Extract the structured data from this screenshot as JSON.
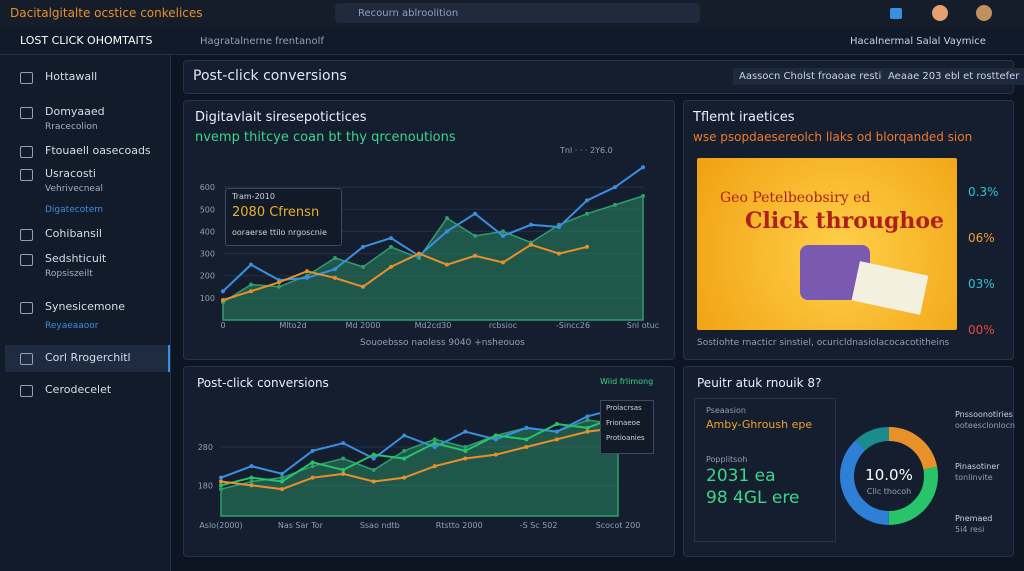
{
  "topbar": {
    "brand": "Dacitalgitalte ocstice conkelices",
    "search": "Recourn ablroolition"
  },
  "nav": {
    "title": "LOST CLICK OHOMTAITS",
    "breadcrumb": "Hagratalnerne frentanolf",
    "right": "Hacalnermal Salal Vaymice"
  },
  "sidebar": {
    "items": [
      {
        "label": "Hottawall"
      },
      {
        "label": "Domyaaed",
        "sub": "Rracecolion"
      },
      {
        "label": "Ftouaell oasecoads"
      },
      {
        "label": "Usracosti",
        "sub": "Vehrivecneal",
        "sub2": "Digatecotem"
      },
      {
        "label": "Cohibansil"
      },
      {
        "label": "Sedshticuit",
        "sub": "Ropsiszeilt"
      },
      {
        "label": "Synesicemone",
        "sub2": "Reyaeaaoor"
      },
      {
        "label": "Corl Rrogerchitl"
      },
      {
        "label": "Cerodecelet"
      }
    ]
  },
  "header": {
    "title": "Post-click conversions",
    "buttons": [
      "Aassocn Cholst froaoae resticen",
      "Aeaae 203 ebl et rosttefer"
    ]
  },
  "panel1": {
    "title": "Digitavlait siresepotictices",
    "subtitle": "nvemp thitcye coan bt thy qrcenoutions",
    "legend": "Tnl · · ·  2Y6.0",
    "tooltip": [
      "Tram-2010",
      "2080 Cfrensn",
      "ooraerse ttilo nrgoscnie"
    ],
    "footer": "Souoebsso naoless 9040 +nsheouos",
    "chart": {
      "type": "line",
      "ylim": [
        0,
        700
      ],
      "yticks": [
        100,
        200,
        300,
        400,
        500,
        600
      ],
      "xlabels": [
        "0",
        "Mlto2d",
        "Md 2000",
        "Md2cd30",
        "rcbsioc",
        "-Sincc26",
        "Snl otuc"
      ],
      "series": [
        {
          "kind": "area",
          "color": "#2f9e6e",
          "values": [
            80,
            160,
            150,
            200,
            280,
            240,
            330,
            280,
            460,
            380,
            400,
            350,
            430,
            480,
            520,
            560
          ]
        },
        {
          "kind": "line",
          "color": "#3b8fe0",
          "values": [
            130,
            250,
            180,
            190,
            230,
            330,
            370,
            290,
            400,
            480,
            380,
            430,
            420,
            540,
            600,
            690
          ]
        },
        {
          "kind": "line",
          "color": "#e8902a",
          "values": [
            90,
            130,
            170,
            220,
            190,
            150,
            240,
            300,
            250,
            290,
            260,
            340,
            300,
            330,
            null,
            null
          ]
        }
      ]
    }
  },
  "panel2": {
    "title": "Tflemt iraetices",
    "subtitle": "wse psopdaesereolch llaks od blorqanded sion",
    "image_text": [
      "Geo Petelbeobsiry ed",
      "Click throughoe"
    ],
    "stats": [
      {
        "label": "0.3%",
        "color": "#2ec4d6"
      },
      {
        "label": "06%",
        "color": "#f0a030"
      },
      {
        "label": "03%",
        "color": "#2ec4d6"
      },
      {
        "label": "00%",
        "color": "#e84a3a"
      }
    ],
    "footer": "Sostiohte rnacticr sinstiel, ocuricldnasiolacocacotitheins"
  },
  "panel3": {
    "title": "Post-click conversions",
    "control": "Wiid frlimong",
    "legend": [
      "Prolacrsas",
      "Frionaeoe",
      "Protioanies"
    ],
    "chart": {
      "type": "line",
      "ylim": [
        100,
        400
      ],
      "yticks": [
        180,
        280
      ],
      "xlabels": [
        "Aslo(2000)",
        "Nas Sar Tor",
        "Ssao ndtb",
        "Rtstto 2000",
        "-S Sc 502",
        "Scocot 200"
      ],
      "series": [
        {
          "kind": "area",
          "color": "#2f9e6e",
          "values": [
            170,
            190,
            200,
            230,
            250,
            220,
            270,
            300,
            280,
            310,
            330,
            320,
            350,
            340
          ]
        },
        {
          "kind": "line",
          "color": "#3b8fe0",
          "values": [
            200,
            230,
            210,
            270,
            290,
            250,
            310,
            280,
            320,
            300,
            330,
            320,
            360,
            380
          ]
        },
        {
          "kind": "line",
          "color": "#27c46a",
          "values": [
            180,
            200,
            190,
            240,
            220,
            260,
            250,
            290,
            270,
            310,
            300,
            340,
            330,
            360
          ]
        },
        {
          "kind": "line",
          "color": "#e8902a",
          "values": [
            190,
            180,
            170,
            200,
            210,
            190,
            200,
            230,
            250,
            260,
            280,
            300,
            320,
            330
          ]
        }
      ]
    }
  },
  "panel4": {
    "title": "Peuitr atuk rnouik 8?",
    "label1": "Pseaasion",
    "label2": "Amby-Ghroush epe",
    "label3": "Popplitsoh",
    "big1": "2031 ea",
    "big2": "98 4GL ere",
    "donut": {
      "center": "10.0%",
      "caption": "Cllc thocoh",
      "segments": [
        {
          "value": 22,
          "color": "#e8902a"
        },
        {
          "value": 28,
          "color": "#27c46a"
        },
        {
          "value": 38,
          "color": "#2e7fd6"
        },
        {
          "value": 12,
          "color": "#1b8c8c"
        }
      ]
    },
    "legend": [
      {
        "title": "Pnssoonotiries",
        "sub": "ooteesclonlocn"
      },
      {
        "title": "Pinasotiner",
        "sub": "tonlinvite"
      },
      {
        "title": "Pnemaed",
        "sub": "5i4 resi"
      }
    ]
  }
}
